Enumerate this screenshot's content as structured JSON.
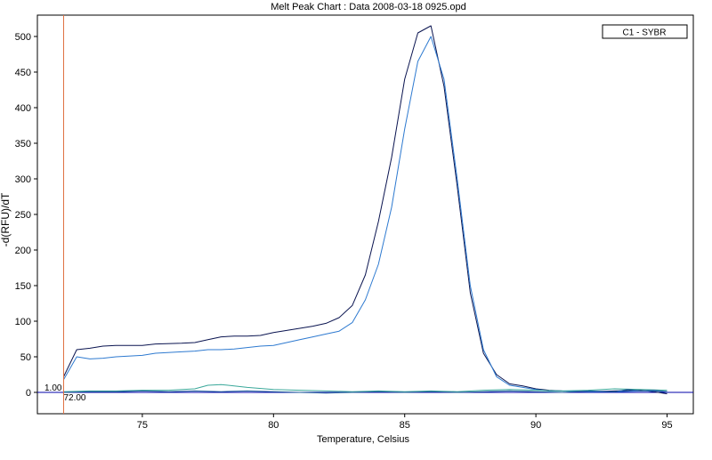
{
  "chart_data": {
    "type": "line",
    "title": "Melt Peak Chart : Data 2008-03-18 0925.opd",
    "xlabel": "Temperature, Celsius",
    "ylabel": "-d(RFU)/dT",
    "xlim": [
      71,
      96
    ],
    "ylim": [
      -30,
      530
    ],
    "xticks": [
      75,
      80,
      85,
      90,
      95
    ],
    "yticks": [
      0,
      50,
      100,
      150,
      200,
      250,
      300,
      350,
      400,
      450,
      500
    ],
    "grid": true,
    "legend": {
      "position": "top-right",
      "entries": [
        "C1 - SYBR"
      ]
    },
    "marker": {
      "x": 72,
      "x_label": "72.00",
      "y_label": "1.00",
      "color": "#e07040"
    },
    "baseline": {
      "y": 0,
      "color": "#0000aa"
    },
    "series": [
      {
        "color": "#0a1450",
        "x": [
          72,
          72.5,
          73,
          73.5,
          74,
          75,
          75.5,
          76.5,
          77,
          77.5,
          78,
          78.5,
          79,
          79.5,
          80,
          80.5,
          81,
          81.5,
          82,
          82.5,
          83,
          83.5,
          84,
          84.5,
          85,
          85.5,
          86,
          86.5,
          87,
          87.5,
          88,
          88.5,
          89,
          89.5,
          90,
          90.5,
          91,
          92,
          93,
          94,
          94.5,
          95
        ],
        "values": [
          22,
          60,
          62,
          65,
          66,
          66,
          68,
          69,
          70,
          74,
          78,
          79,
          79,
          80,
          84,
          87,
          90,
          93,
          97,
          105,
          122,
          165,
          240,
          330,
          440,
          505,
          515,
          430,
          290,
          140,
          55,
          25,
          12,
          9,
          5,
          3,
          2,
          1,
          2,
          3,
          1,
          -2
        ]
      },
      {
        "color": "#2e7ad0",
        "x": [
          72,
          72.5,
          73,
          73.5,
          74,
          75,
          75.5,
          76.5,
          77,
          77.5,
          78,
          78.5,
          79,
          79.5,
          80,
          80.5,
          81,
          81.5,
          82,
          82.5,
          83,
          83.5,
          84,
          84.5,
          85,
          85.5,
          86,
          86.5,
          87,
          87.5,
          88,
          88.5,
          89,
          89.5,
          90,
          90.5,
          91,
          92,
          93,
          94,
          94.5,
          95
        ],
        "values": [
          18,
          50,
          47,
          48,
          50,
          52,
          55,
          57,
          58,
          60,
          60,
          61,
          63,
          65,
          66,
          70,
          74,
          78,
          82,
          86,
          98,
          130,
          180,
          260,
          370,
          465,
          500,
          440,
          300,
          150,
          60,
          22,
          10,
          7,
          4,
          2,
          2,
          1,
          1,
          2,
          2,
          1
        ]
      },
      {
        "color": "#3aa89a",
        "x": [
          72,
          73,
          74,
          75,
          76,
          77,
          77.5,
          78,
          78.5,
          79,
          80,
          81,
          82,
          83,
          84,
          85,
          86,
          87,
          88,
          89,
          90,
          91,
          92,
          93,
          94,
          95
        ],
        "values": [
          1,
          2,
          2,
          3,
          3,
          5,
          10,
          11,
          9,
          7,
          4,
          3,
          2,
          1,
          2,
          1,
          2,
          1,
          3,
          4,
          3,
          2,
          3,
          5,
          4,
          3
        ]
      },
      {
        "color": "#1f5c9a",
        "x": [
          72,
          73,
          74,
          75,
          76,
          77,
          78,
          79,
          80,
          81,
          82,
          83,
          84,
          85,
          86,
          87,
          88,
          89,
          90,
          91,
          92,
          93,
          93.5,
          94,
          94.5,
          95
        ],
        "values": [
          0,
          1,
          1,
          2,
          1,
          2,
          1,
          2,
          1,
          0,
          -1,
          0,
          1,
          0,
          1,
          0,
          1,
          2,
          1,
          0,
          2,
          1,
          4,
          2,
          3,
          1
        ]
      }
    ]
  }
}
